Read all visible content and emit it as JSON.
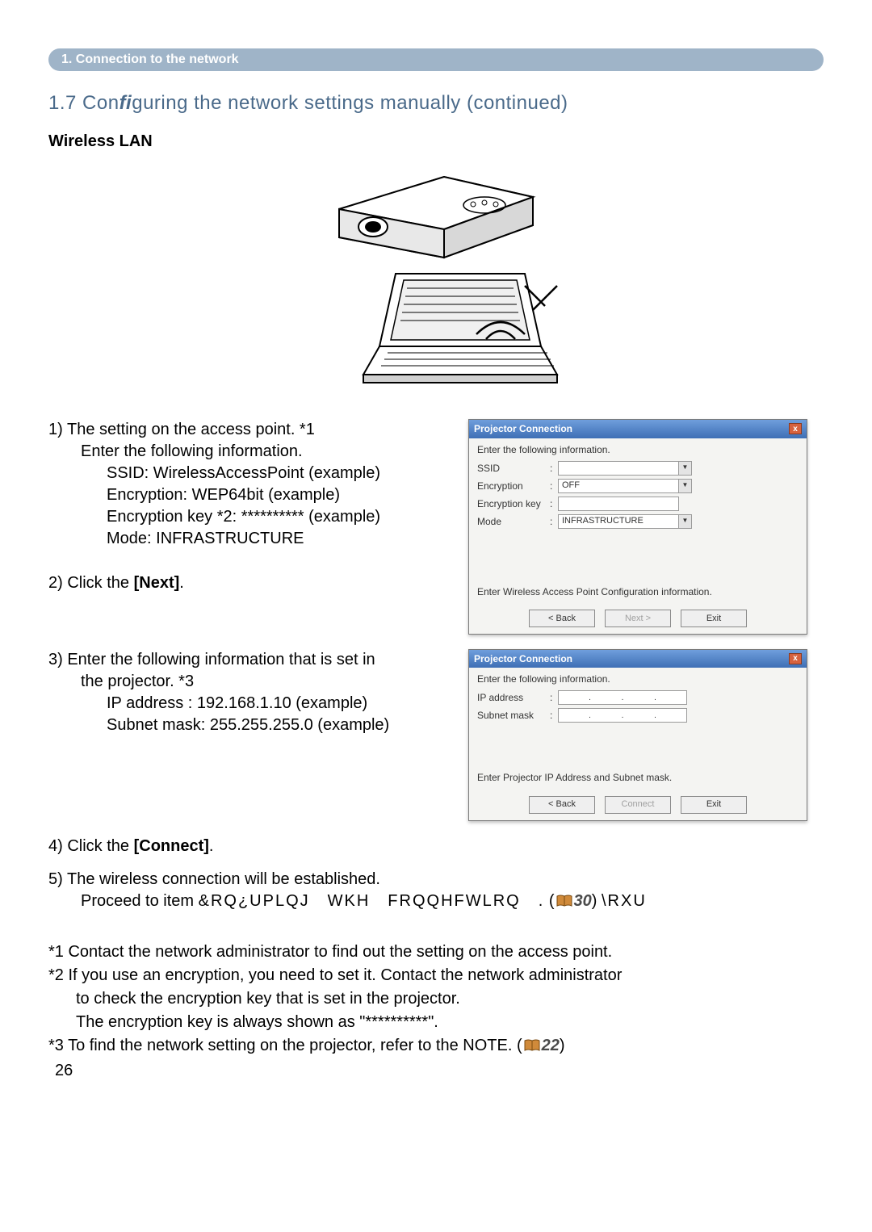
{
  "colors": {
    "pill_bg": "#9fb4c8",
    "pill_text": "#ffffff",
    "title_text": "#4a6a8a",
    "ref_icon_fill": "#d08a3a",
    "ref_icon_stroke": "#7a4a10",
    "ref_italic": "#4a4a4a"
  },
  "header": {
    "section_label": "1. Connection to the network",
    "subsection": "1.7 Configuring the network settings manually (continued)",
    "sub_label": "Wireless LAN"
  },
  "step1": {
    "line1": "1)  The setting on the access point. *1",
    "line2": "Enter the following information.",
    "v1": "SSID: WirelessAccessPoint (example)",
    "v2": "Encryption: WEP64bit (example)",
    "v3": "Encryption key *2: ********** (example)",
    "v4": "Mode: INFRASTRUCTURE"
  },
  "step2": {
    "line": "2)  Click the [Next]."
  },
  "step3": {
    "line1": "3)  Enter the following information that is set in",
    "line2": "the projector. *3",
    "v1": "IP address : 192.168.1.10 (example)",
    "v2": "Subnet mask: 255.255.255.0 (example)"
  },
  "step4": {
    "line": "4)  Click the [Connect]."
  },
  "step5": {
    "line1": "5)  The wireless connection will be established.",
    "line2a": "Proceed to item ",
    "line2b": "&RQ¿UPLQJ WKH FRQQHFWLRQ .",
    "ref_page": "30",
    "line2c": "\\RXU"
  },
  "footnotes": {
    "f1": "*1 Contact the network administrator to ﬁnd out the setting on the access point.",
    "f2a": "*2 If you use an encryption, you need to set it. Contact the network administrator",
    "f2b": "to check the encryption key that is set in the projector.",
    "f2c": "The encryption key is always shown as \"**********\".",
    "f3a": "*3 To ﬁnd the network setting on the projector, refer to the NOTE. (",
    "f3_ref": "22",
    "f3b": ")"
  },
  "page_number": "26",
  "dialog1": {
    "title": "Projector Connection",
    "instruction": "Enter the following information.",
    "rows": {
      "ssid_label": "SSID",
      "enc_label": "Encryption",
      "enc_value": "OFF",
      "key_label": "Encryption key",
      "mode_label": "Mode",
      "mode_value": "INFRASTRUCTURE"
    },
    "hint": "Enter Wireless Access Point Configuration information.",
    "buttons": {
      "back": "< Back",
      "next": "Next >",
      "exit": "Exit"
    }
  },
  "dialog2": {
    "title": "Projector Connection",
    "instruction": "Enter the following information.",
    "rows": {
      "ip_label": "IP address",
      "mask_label": "Subnet mask"
    },
    "hint": "Enter Projector IP Address and Subnet mask.",
    "buttons": {
      "back": "< Back",
      "connect": "Connect",
      "exit": "Exit"
    }
  }
}
